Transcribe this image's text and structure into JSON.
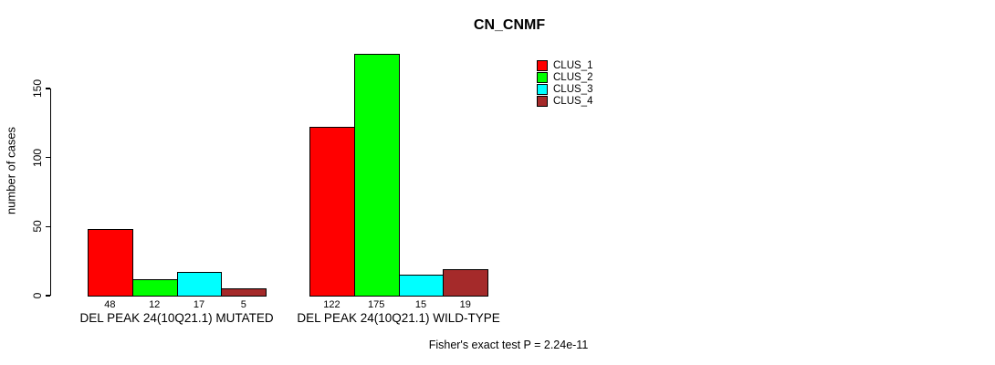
{
  "chart_data": {
    "type": "bar",
    "title": "CN_CNMF",
    "xlabel": "",
    "ylabel": "number of cases",
    "categories": [
      "DEL PEAK 24(10Q21.1) MUTATED",
      "DEL PEAK 24(10Q21.1) WILD-TYPE"
    ],
    "series": [
      {
        "name": "CLUS_1",
        "color": "#FF0000",
        "values": [
          48,
          122
        ]
      },
      {
        "name": "CLUS_2",
        "color": "#00FF00",
        "values": [
          12,
          175
        ]
      },
      {
        "name": "CLUS_3",
        "color": "#00FFFF",
        "values": [
          17,
          15
        ]
      },
      {
        "name": "CLUS_4",
        "color": "#A52A2A",
        "values": [
          5,
          19
        ]
      }
    ],
    "bar_value_labels": [
      [
        "48",
        "12",
        "17",
        "5"
      ],
      [
        "122",
        "175",
        "15",
        "19"
      ]
    ],
    "yticks": [
      0,
      50,
      100,
      150
    ],
    "ylim": [
      0,
      175
    ],
    "grid": false,
    "legend_position": "top-right",
    "annotation": "Fisher's exact test P = 2.24e-11"
  },
  "colors": {
    "background": "#FFFFFF",
    "axis": "#000000",
    "text": "#000000"
  }
}
